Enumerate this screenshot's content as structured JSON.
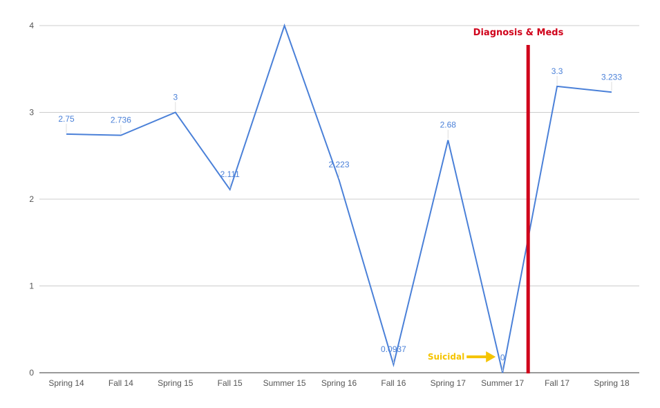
{
  "chart_data": {
    "type": "line",
    "categories": [
      "Spring 14",
      "Fall 14",
      "Spring 15",
      "Fall 15",
      "Summer 15",
      "Spring 16",
      "Fall 16",
      "Spring 17",
      "Summer 17",
      "Fall 17",
      "Spring 18"
    ],
    "series": [
      {
        "values": [
          2.75,
          2.736,
          3,
          2.111,
          4,
          2.223,
          0.0937,
          2.68,
          0,
          3.3,
          3.233
        ],
        "labels": [
          "2.75",
          "2.736",
          "3",
          "2.111",
          "",
          "2.223",
          "0.0937",
          "2.68",
          "0",
          "3.3",
          "3.233"
        ],
        "color": "#4a80d8"
      }
    ],
    "ylim": [
      0,
      4
    ],
    "yticks": [
      "0",
      "1",
      "2",
      "3",
      "4"
    ],
    "grid": true,
    "title": "",
    "xlabel": "",
    "ylabel": "",
    "annotations": [
      {
        "text": "Diagnosis & Meds",
        "color": "#d0021b",
        "type": "vertical-line",
        "after_category": "Summer 17"
      },
      {
        "text": "Suicidal",
        "color": "#f5c400",
        "type": "arrow",
        "points_to": "Summer 17"
      }
    ]
  }
}
